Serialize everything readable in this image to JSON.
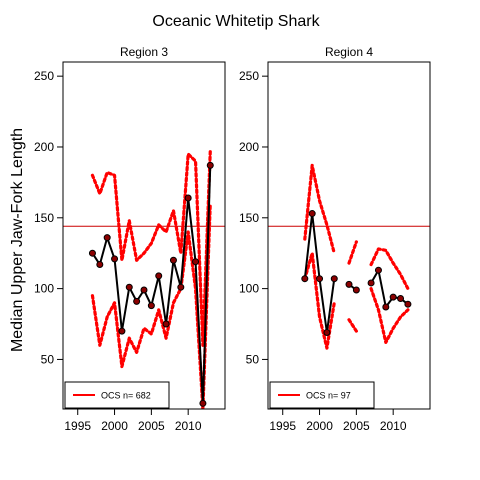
{
  "chart_data": {
    "type": "line",
    "title": "Oceanic Whitetip Shark",
    "ylabel": "Median Upper Jaw-Fork Length",
    "xlim": [
      1993,
      2015
    ],
    "ylim": [
      15,
      260
    ],
    "xticks": [
      1995,
      2000,
      2005,
      2010
    ],
    "yticks": [
      50,
      100,
      150,
      200,
      250
    ],
    "reference_line": 144,
    "colors": {
      "median": "#000000",
      "bounds": "#ff0000",
      "reference": "#cc0000",
      "points": "#8b0000"
    },
    "panels": [
      {
        "title": "Region 3",
        "legend": {
          "position": "bottom-left",
          "label": "OCS n= 682"
        },
        "median": [
          {
            "x": 1997,
            "y": 125
          },
          {
            "x": 1998,
            "y": 117
          },
          {
            "x": 1999,
            "y": 136
          },
          {
            "x": 2000,
            "y": 121
          },
          {
            "x": 2001,
            "y": 70
          },
          {
            "x": 2002,
            "y": 101
          },
          {
            "x": 2003,
            "y": 91
          },
          {
            "x": 2004,
            "y": 99
          },
          {
            "x": 2005,
            "y": 88
          },
          {
            "x": 2006,
            "y": 109
          },
          {
            "x": 2007,
            "y": 75
          },
          {
            "x": 2008,
            "y": 120
          },
          {
            "x": 2009,
            "y": 101
          },
          {
            "x": 2010,
            "y": 164
          },
          {
            "x": 2011,
            "y": 119
          },
          {
            "x": 2012,
            "y": 19
          },
          {
            "x": 2013,
            "y": 187
          }
        ],
        "upper": [
          {
            "x": 1997,
            "y": 180
          },
          {
            "x": 1998,
            "y": 167
          },
          {
            "x": 1999,
            "y": 182
          },
          {
            "x": 2000,
            "y": 180
          },
          {
            "x": 2001,
            "y": 120
          },
          {
            "x": 2002,
            "y": 148
          },
          {
            "x": 2003,
            "y": 120
          },
          {
            "x": 2004,
            "y": 125
          },
          {
            "x": 2005,
            "y": 132
          },
          {
            "x": 2006,
            "y": 145
          },
          {
            "x": 2007,
            "y": 140
          },
          {
            "x": 2008,
            "y": 155
          },
          {
            "x": 2009,
            "y": 125
          },
          {
            "x": 2010,
            "y": 195
          },
          {
            "x": 2011,
            "y": 190
          },
          {
            "x": 2012,
            "y": 60
          },
          {
            "x": 2013,
            "y": 197
          }
        ],
        "lower": [
          {
            "x": 1997,
            "y": 95
          },
          {
            "x": 1998,
            "y": 60
          },
          {
            "x": 1999,
            "y": 80
          },
          {
            "x": 2000,
            "y": 90
          },
          {
            "x": 2001,
            "y": 45
          },
          {
            "x": 2002,
            "y": 65
          },
          {
            "x": 2003,
            "y": 55
          },
          {
            "x": 2004,
            "y": 72
          },
          {
            "x": 2005,
            "y": 68
          },
          {
            "x": 2006,
            "y": 85
          },
          {
            "x": 2007,
            "y": 65
          },
          {
            "x": 2008,
            "y": 90
          },
          {
            "x": 2009,
            "y": 100
          },
          {
            "x": 2010,
            "y": 140
          },
          {
            "x": 2011,
            "y": 100
          },
          {
            "x": 2012,
            "y": 15
          },
          {
            "x": 2013,
            "y": 160
          }
        ]
      },
      {
        "title": "Region 4",
        "legend": {
          "position": "bottom-left",
          "label": "OCS n= 97"
        },
        "median": [
          [
            {
              "x": 1998,
              "y": 107
            },
            {
              "x": 1999,
              "y": 153
            },
            {
              "x": 2000,
              "y": 107
            },
            {
              "x": 2001,
              "y": 69
            },
            {
              "x": 2002,
              "y": 107
            }
          ],
          [
            {
              "x": 2004,
              "y": 103
            },
            {
              "x": 2005,
              "y": 99
            }
          ],
          [
            {
              "x": 2007,
              "y": 104
            },
            {
              "x": 2008,
              "y": 113
            },
            {
              "x": 2009,
              "y": 87
            },
            {
              "x": 2010,
              "y": 94
            },
            {
              "x": 2011,
              "y": 93
            },
            {
              "x": 2012,
              "y": 89
            }
          ]
        ],
        "upper": [
          [
            {
              "x": 1998,
              "y": 135
            },
            {
              "x": 1999,
              "y": 187
            },
            {
              "x": 2000,
              "y": 162
            },
            {
              "x": 2001,
              "y": 145
            },
            {
              "x": 2002,
              "y": 125
            }
          ],
          [
            {
              "x": 2004,
              "y": 118
            },
            {
              "x": 2005,
              "y": 133
            }
          ],
          [
            {
              "x": 2007,
              "y": 117
            },
            {
              "x": 2008,
              "y": 128
            },
            {
              "x": 2009,
              "y": 127
            },
            {
              "x": 2010,
              "y": 118
            },
            {
              "x": 2011,
              "y": 110
            },
            {
              "x": 2012,
              "y": 100
            }
          ]
        ],
        "lower": [
          [
            {
              "x": 1998,
              "y": 107
            },
            {
              "x": 1999,
              "y": 125
            },
            {
              "x": 2000,
              "y": 80
            },
            {
              "x": 2001,
              "y": 58
            },
            {
              "x": 2002,
              "y": 90
            }
          ],
          [
            {
              "x": 2004,
              "y": 78
            },
            {
              "x": 2005,
              "y": 70
            }
          ],
          [
            {
              "x": 2007,
              "y": 100
            },
            {
              "x": 2008,
              "y": 85
            },
            {
              "x": 2009,
              "y": 62
            },
            {
              "x": 2010,
              "y": 72
            },
            {
              "x": 2011,
              "y": 80
            },
            {
              "x": 2012,
              "y": 85
            }
          ]
        ]
      }
    ]
  }
}
